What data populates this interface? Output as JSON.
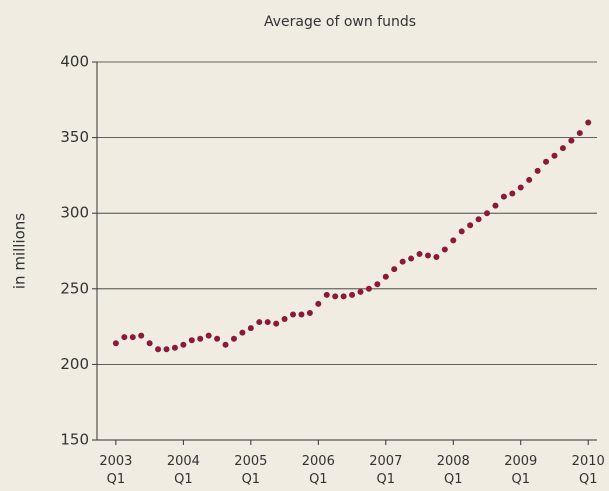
{
  "chart_data": {
    "type": "scatter",
    "title": "Average of own funds",
    "y_label": "in millions",
    "color": "#8b1a3a",
    "grid": true,
    "xlim": [
      2002.72,
      2010.13
    ],
    "xticks": [
      {
        "value": 2003,
        "label": "2003",
        "sublabel": "Q1"
      },
      {
        "value": 2004,
        "label": "2004",
        "sublabel": "Q1"
      },
      {
        "value": 2005,
        "label": "2005",
        "sublabel": "Q1"
      },
      {
        "value": 2006,
        "label": "2006",
        "sublabel": "Q1"
      },
      {
        "value": 2007,
        "label": "2007",
        "sublabel": "Q1"
      },
      {
        "value": 2008,
        "label": "2008",
        "sublabel": "Q1"
      },
      {
        "value": 2009,
        "label": "2009",
        "sublabel": "Q1"
      },
      {
        "value": 2010,
        "label": "2010",
        "sublabel": "Q1"
      }
    ],
    "ylim": [
      150,
      400
    ],
    "yticks": [
      150,
      200,
      250,
      300,
      350,
      400
    ],
    "x": [
      2003,
      2003.125,
      2003.25,
      2003.375,
      2003.5,
      2003.625,
      2003.75,
      2003.875,
      2004,
      2004.125,
      2004.25,
      2004.375,
      2004.5,
      2004.625,
      2004.75,
      2004.875,
      2005,
      2005.125,
      2005.25,
      2005.375,
      2005.5,
      2005.625,
      2005.75,
      2005.875,
      2006,
      2006.125,
      2006.25,
      2006.375,
      2006.5,
      2006.625,
      2006.75,
      2006.875,
      2007,
      2007.125,
      2007.25,
      2007.375,
      2007.5,
      2007.625,
      2007.75,
      2007.875,
      2008,
      2008.125,
      2008.25,
      2008.375,
      2008.5,
      2008.625,
      2008.75,
      2008.875,
      2009,
      2009.125,
      2009.25,
      2009.375,
      2009.5,
      2009.625,
      2009.75,
      2009.875,
      2010
    ],
    "values": [
      214,
      218,
      218,
      219,
      214,
      210,
      210,
      211,
      213,
      216,
      217,
      219,
      217,
      213,
      217,
      221,
      224,
      228,
      228,
      227,
      230,
      233,
      233,
      234,
      240,
      246,
      245,
      245,
      246,
      248,
      250,
      253,
      258,
      263,
      268,
      270,
      273,
      272,
      271,
      276,
      282,
      288,
      292,
      296,
      300,
      305,
      311,
      313,
      317,
      322,
      328,
      334,
      338,
      343,
      348,
      353,
      360
    ]
  }
}
